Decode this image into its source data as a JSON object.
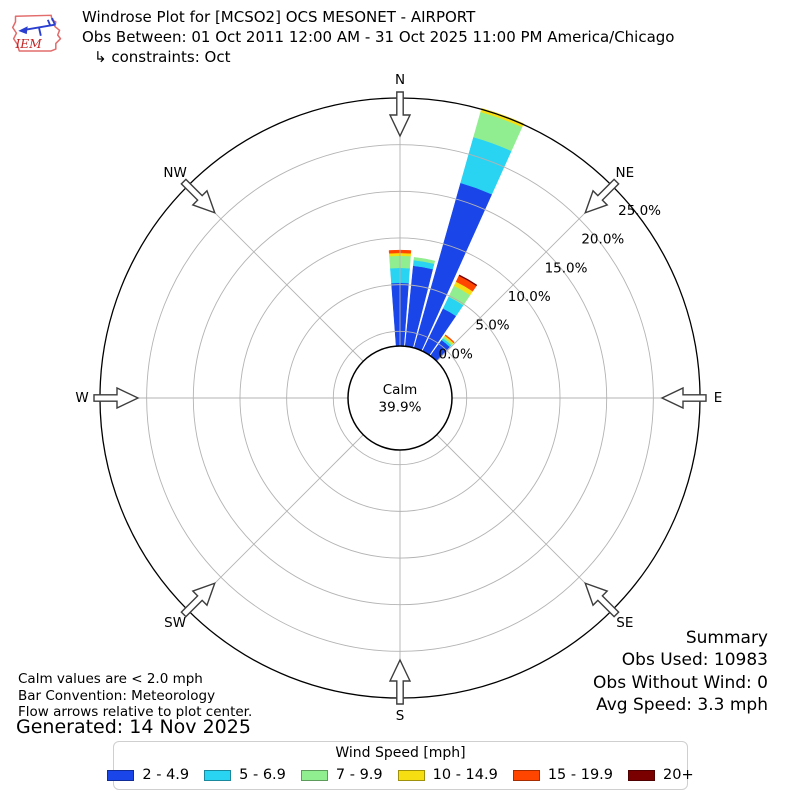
{
  "logo": {
    "text": "IEM"
  },
  "header": {
    "title": "Windrose Plot for [MCSO2] OCS MESONET - AIRPORT",
    "subtitle": "Obs Between: 01 Oct 2011 12:00 AM - 31 Oct 2025 11:00 PM America/Chicago",
    "constraint": "↳ constraints: Oct"
  },
  "chart_data": {
    "type": "windrose",
    "title": "Windrose Plot for [MCSO2] OCS MESONET - AIRPORT",
    "units": "mph",
    "calm_label": "Calm",
    "calm_percent_label": "39.9%",
    "calm_percent": 39.9,
    "radial_ticks_percent": [
      0,
      5,
      10,
      15,
      20,
      25
    ],
    "radial_tick_labels": [
      "0.0%",
      "5.0%",
      "10.0%",
      "15.0%",
      "20.0%",
      "25.0%"
    ],
    "compass_labels": [
      "N",
      "NE",
      "E",
      "SE",
      "S",
      "SW",
      "W",
      "NW"
    ],
    "compass_angles_deg": [
      0,
      45,
      90,
      135,
      180,
      225,
      270,
      315
    ],
    "sector_width_deg": 8.5,
    "speed_bins": [
      {
        "label": "2 - 4.9",
        "color": "#1a45e8"
      },
      {
        "label": "5 - 6.9",
        "color": "#29d3f2"
      },
      {
        "label": "7 - 9.9",
        "color": "#90ee90"
      },
      {
        "label": "10 - 14.9",
        "color": "#f5df13"
      },
      {
        "label": "15 - 19.9",
        "color": "#ff4500"
      },
      {
        "label": "20+",
        "color": "#7a0000"
      }
    ],
    "bars": [
      {
        "direction_deg": 0,
        "values_percent": [
          5.2,
          1.6,
          1.3,
          0.3,
          0.3,
          0
        ]
      },
      {
        "direction_deg": 10,
        "values_percent": [
          7.1,
          0.6,
          0.3,
          0,
          0,
          0
        ]
      },
      {
        "direction_deg": 20,
        "values_percent": [
          16.8,
          5.1,
          2.8,
          0.4,
          0,
          0
        ]
      },
      {
        "direction_deg": 30,
        "values_percent": [
          3.5,
          1.4,
          1.3,
          0.5,
          0.7,
          0.1
        ]
      },
      {
        "direction_deg": 40,
        "values_percent": [
          0.5,
          0.25,
          0.2,
          0.15,
          0.1,
          0
        ]
      }
    ],
    "legend_title": "Wind Speed [mph]",
    "legend_position": "bottom"
  },
  "footnotes": {
    "line1": "Calm values are < 2.0 mph",
    "line2": "Bar Convention: Meteorology",
    "line3": "Flow arrows relative to plot center.",
    "generated": "Generated: 14 Nov 2025"
  },
  "summary": {
    "title": "Summary",
    "obs_used": "Obs Used: 10983",
    "obs_without_wind": "Obs Without Wind: 0",
    "avg_speed": "Avg Speed: 3.3 mph"
  },
  "legend": {
    "title": "Wind Speed [mph]"
  }
}
